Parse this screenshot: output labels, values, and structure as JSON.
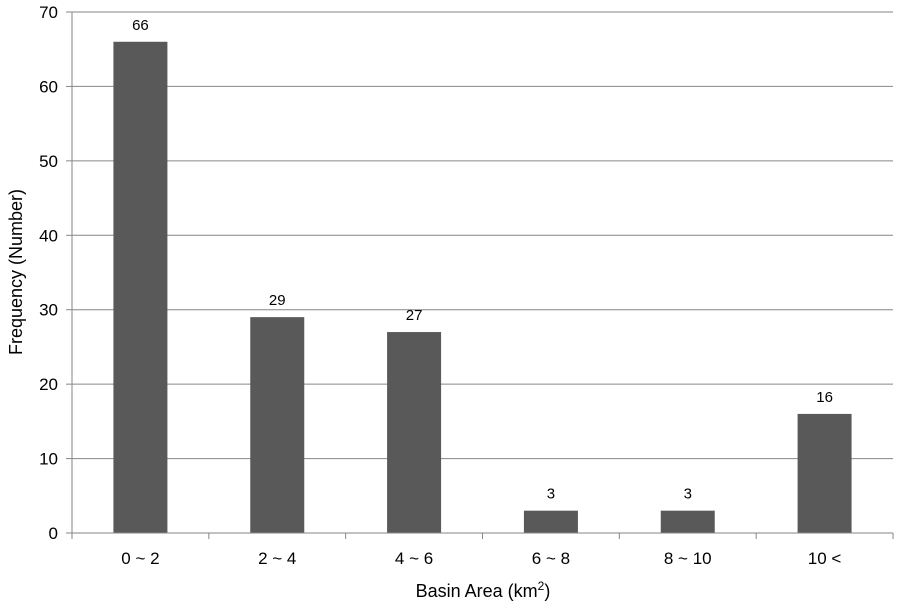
{
  "chart_data": {
    "type": "bar",
    "categories": [
      "0 ~ 2",
      "2 ~ 4",
      "4 ~ 6",
      "6 ~ 8",
      "8 ~ 10",
      "10 <"
    ],
    "values": [
      66,
      29,
      27,
      3,
      3,
      16
    ],
    "data_labels": [
      "66",
      "29",
      "27",
      "3",
      "3",
      "16"
    ],
    "title": "",
    "xlabel": "Basin Area (km2)",
    "xlabel_main": "Basin Area (km",
    "xlabel_sup": "2",
    "xlabel_end": ")",
    "ylabel": "Frequency (Number)",
    "ylim": [
      0,
      70
    ],
    "yticks": [
      0,
      10,
      20,
      30,
      40,
      50,
      60,
      70
    ],
    "ytick_labels": [
      "0",
      "10",
      "20",
      "30",
      "40",
      "50",
      "60",
      "70"
    ],
    "grid": true,
    "legend": "none",
    "bar_color": "#595959",
    "grid_color": "#868686"
  }
}
